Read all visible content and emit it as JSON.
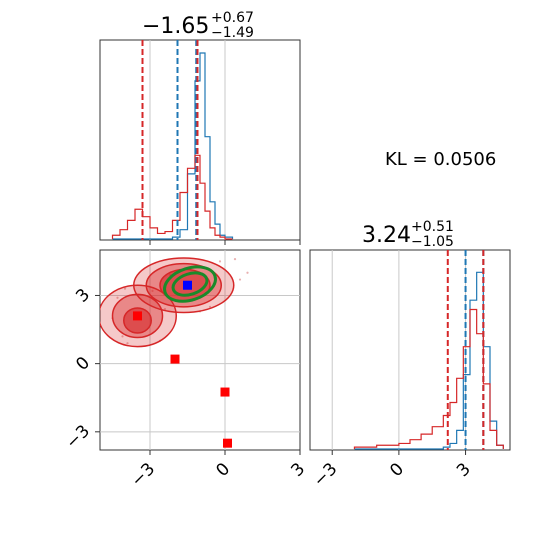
{
  "chart_data": [
    {
      "panel": "marginal-x",
      "type": "histogram",
      "title": {
        "value": "−1.65",
        "sup": "+0.67",
        "sub": "−1.49"
      },
      "xlim": [
        -5,
        3
      ],
      "xticks": [
        -3,
        0,
        3
      ],
      "xgrid": [
        -3,
        0
      ],
      "bins_x": [
        -4.5,
        -4.2,
        -3.9,
        -3.6,
        -3.3,
        -3.0,
        -2.7,
        -2.4,
        -2.1,
        -1.8,
        -1.5,
        -1.2,
        -1.0,
        -0.8,
        -0.6,
        -0.4,
        -0.2,
        0.0,
        0.3
      ],
      "series": [
        {
          "color": "#1f77b4",
          "values": [
            0,
            0,
            0,
            0,
            0,
            0,
            0,
            0,
            0.01,
            0.05,
            0.35,
            0.85,
            1.0,
            0.55,
            0.2,
            0.08,
            0.02,
            0.01
          ]
        },
        {
          "color": "#d62728",
          "values": [
            0.02,
            0.05,
            0.1,
            0.16,
            0.12,
            0.06,
            0.03,
            0.04,
            0.1,
            0.25,
            0.38,
            0.45,
            0.3,
            0.15,
            0.06,
            0.02,
            0.01,
            0
          ]
        }
      ],
      "vlines": [
        {
          "x": -3.3,
          "color": "#d62728"
        },
        {
          "x": -1.9,
          "color": "#1f77b4"
        },
        {
          "x": -1.15,
          "color": "#1f77b4"
        },
        {
          "x": -1.1,
          "color": "#d62728"
        }
      ]
    },
    {
      "panel": "marginal-y",
      "type": "histogram",
      "title": {
        "value": "3.24",
        "sup": "+0.51",
        "sub": "−1.05"
      },
      "xlim": [
        -4,
        5
      ],
      "xticks": [
        -3,
        0,
        3
      ],
      "xgrid": [
        -3,
        0,
        3
      ],
      "bins_x": [
        -2.0,
        -1.5,
        -1.0,
        -0.5,
        0.0,
        0.5,
        1.0,
        1.5,
        2.0,
        2.3,
        2.6,
        2.9,
        3.2,
        3.5,
        3.8,
        4.1,
        4.4,
        4.7
      ],
      "series": [
        {
          "color": "#1f77b4",
          "values": [
            0,
            0,
            0,
            0,
            0,
            0,
            0,
            0,
            0.01,
            0.03,
            0.1,
            0.4,
            0.8,
            0.95,
            0.55,
            0.15,
            0.02
          ]
        },
        {
          "color": "#d62728",
          "values": [
            0.01,
            0.01,
            0.02,
            0.02,
            0.03,
            0.05,
            0.08,
            0.12,
            0.18,
            0.25,
            0.38,
            0.55,
            0.75,
            0.62,
            0.35,
            0.1,
            0.02
          ]
        }
      ],
      "vlines": [
        {
          "x": 2.2,
          "color": "#d62728"
        },
        {
          "x": 3.0,
          "color": "#1f77b4"
        },
        {
          "x": 3.8,
          "color": "#1f77b4"
        },
        {
          "x": 3.8,
          "color": "#d62728"
        }
      ]
    },
    {
      "panel": "joint",
      "type": "contour-scatter",
      "xlim": [
        -5,
        3
      ],
      "ylim": [
        -3.8,
        5
      ],
      "xticks": [
        -3,
        0,
        3
      ],
      "yticks": [
        -3,
        0,
        3
      ],
      "red_regions": [
        {
          "cx": -1.65,
          "cy": 3.45,
          "rx": 2.0,
          "ry": 1.2,
          "opacity": 0.25
        },
        {
          "cx": -3.5,
          "cy": 2.1,
          "rx": 1.55,
          "ry": 1.35,
          "opacity": 0.25
        },
        {
          "cx": -1.65,
          "cy": 3.45,
          "rx": 1.5,
          "ry": 0.95,
          "opacity": 0.4
        },
        {
          "cx": -3.5,
          "cy": 2.1,
          "rx": 1.0,
          "ry": 0.95,
          "opacity": 0.4
        },
        {
          "cx": -1.6,
          "cy": 3.45,
          "rx": 1.0,
          "ry": 0.7,
          "opacity": 0.6
        },
        {
          "cx": -3.5,
          "cy": 1.9,
          "rx": 0.55,
          "ry": 0.55,
          "opacity": 0.6
        }
      ],
      "green_contours": [
        {
          "cx": -1.4,
          "cy": 3.5,
          "rx": 1.05,
          "ry": 0.7
        },
        {
          "cx": -1.4,
          "cy": 3.5,
          "rx": 0.7,
          "ry": 0.45
        }
      ],
      "markers": [
        {
          "x": -1.5,
          "y": 3.45,
          "color": "#0000ff"
        },
        {
          "x": -3.5,
          "y": 2.1,
          "color": "#ff0000"
        },
        {
          "x": -2.0,
          "y": 0.2,
          "color": "#ff0000"
        },
        {
          "x": 0.0,
          "y": -1.25,
          "color": "#ff0000"
        },
        {
          "x": 0.1,
          "y": -3.5,
          "color": "#ff0000"
        }
      ]
    }
  ],
  "annotation": {
    "kl_text": "KL = 0.0506"
  }
}
